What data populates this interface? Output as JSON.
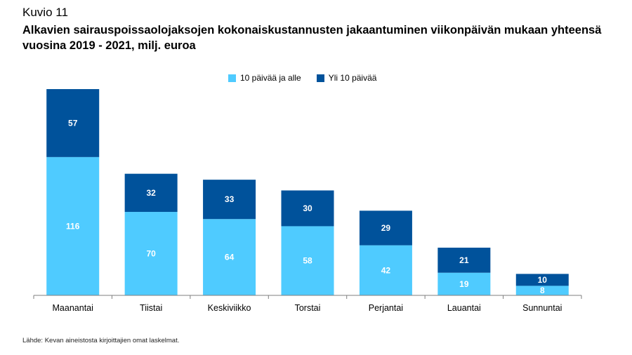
{
  "figure_label": "Kuvio 11",
  "source_note": "Lähde: Kevan aineistosta kirjoittajien omat laskelmat.",
  "colors": {
    "short": "#4fcbff",
    "long": "#00529b",
    "axis": "#7f7f7f",
    "label": "#ffffff"
  },
  "chart_data": {
    "type": "bar",
    "stacked": true,
    "title": "Alkavien sairauspoissaolojaksojen kokonaiskustannusten jakaantuminen viikonpäivän mukaan yhteensä vuosina 2019 - 2021, milj. euroa",
    "categories": [
      "Maanantai",
      "Tiistai",
      "Keskiviikko",
      "Torstai",
      "Perjantai",
      "Lauantai",
      "Sunnuntai"
    ],
    "series": [
      {
        "name": "10 päivää ja alle",
        "values": [
          116,
          70,
          64,
          58,
          42,
          19,
          8
        ]
      },
      {
        "name": "Yli 10 päivää",
        "values": [
          57,
          32,
          33,
          30,
          29,
          21,
          10
        ]
      }
    ],
    "ylim": [
      0,
      173
    ],
    "legend_position": "top-center",
    "grid": false,
    "data_labels": true
  }
}
